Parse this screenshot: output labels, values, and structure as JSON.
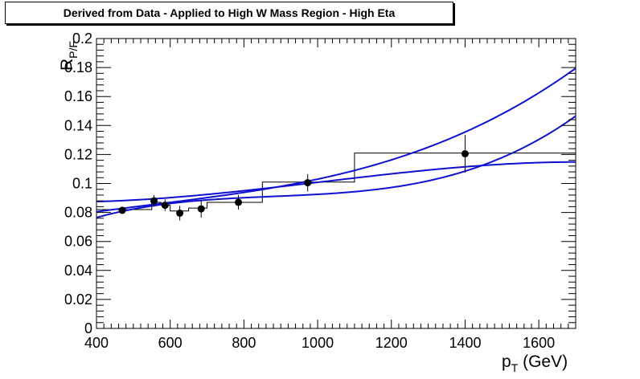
{
  "chart_data": {
    "type": "scatter",
    "title": "Derived from Data - Applied to High W Mass Region - High Eta",
    "xlabel_main": "p",
    "xlabel_sub": "T",
    "xlabel_unit": " (GeV)",
    "ylabel_main": "R",
    "ylabel_sub": "P/F",
    "xlim": [
      400,
      1700
    ],
    "ylim": [
      0,
      0.2
    ],
    "x_ticks": [
      400,
      600,
      800,
      1000,
      1200,
      1400,
      1600
    ],
    "y_ticks": [
      0,
      0.02,
      0.04,
      0.06,
      0.08,
      0.1,
      0.12,
      0.14,
      0.16,
      0.18,
      0.2
    ],
    "y_tick_labels": [
      "0",
      "0.02",
      "0.04",
      "0.06",
      "0.08",
      "0.1",
      "0.12",
      "0.14",
      "0.16",
      "0.18",
      "0.2"
    ],
    "histogram": {
      "bin_edges": [
        400,
        550,
        575,
        600,
        650,
        700,
        850,
        1100,
        1700
      ],
      "values": [
        0.082,
        0.087,
        0.085,
        0.081,
        0.083,
        0.087,
        0.101,
        0.121
      ]
    },
    "points": [
      {
        "x": 470,
        "y": 0.0815,
        "err": 0.002
      },
      {
        "x": 556,
        "y": 0.088,
        "err": 0.004
      },
      {
        "x": 586,
        "y": 0.085,
        "err": 0.004
      },
      {
        "x": 626,
        "y": 0.0795,
        "err": 0.005
      },
      {
        "x": 684,
        "y": 0.0825,
        "err": 0.006
      },
      {
        "x": 785,
        "y": 0.087,
        "err": 0.005
      },
      {
        "x": 973,
        "y": 0.1005,
        "err": 0.006
      },
      {
        "x": 1400,
        "y": 0.1205,
        "err": 0.013
      }
    ],
    "fit_curves": [
      {
        "y_at": [
          [
            400,
            0.0765
          ],
          [
            1000,
            0.0925
          ],
          [
            1400,
            0.1085
          ],
          [
            1700,
            0.1465
          ]
        ]
      },
      {
        "y_at": [
          [
            400,
            0.0805
          ],
          [
            1000,
            0.103
          ],
          [
            1400,
            0.1355
          ],
          [
            1700,
            0.1795
          ]
        ]
      },
      {
        "y_at": [
          [
            400,
            0.0875
          ],
          [
            1000,
            0.1008
          ],
          [
            1400,
            0.1115
          ],
          [
            1700,
            0.1148
          ]
        ]
      }
    ],
    "colors": {
      "fit": "#1010d0",
      "points": "#000000",
      "histogram": "#000000"
    }
  }
}
